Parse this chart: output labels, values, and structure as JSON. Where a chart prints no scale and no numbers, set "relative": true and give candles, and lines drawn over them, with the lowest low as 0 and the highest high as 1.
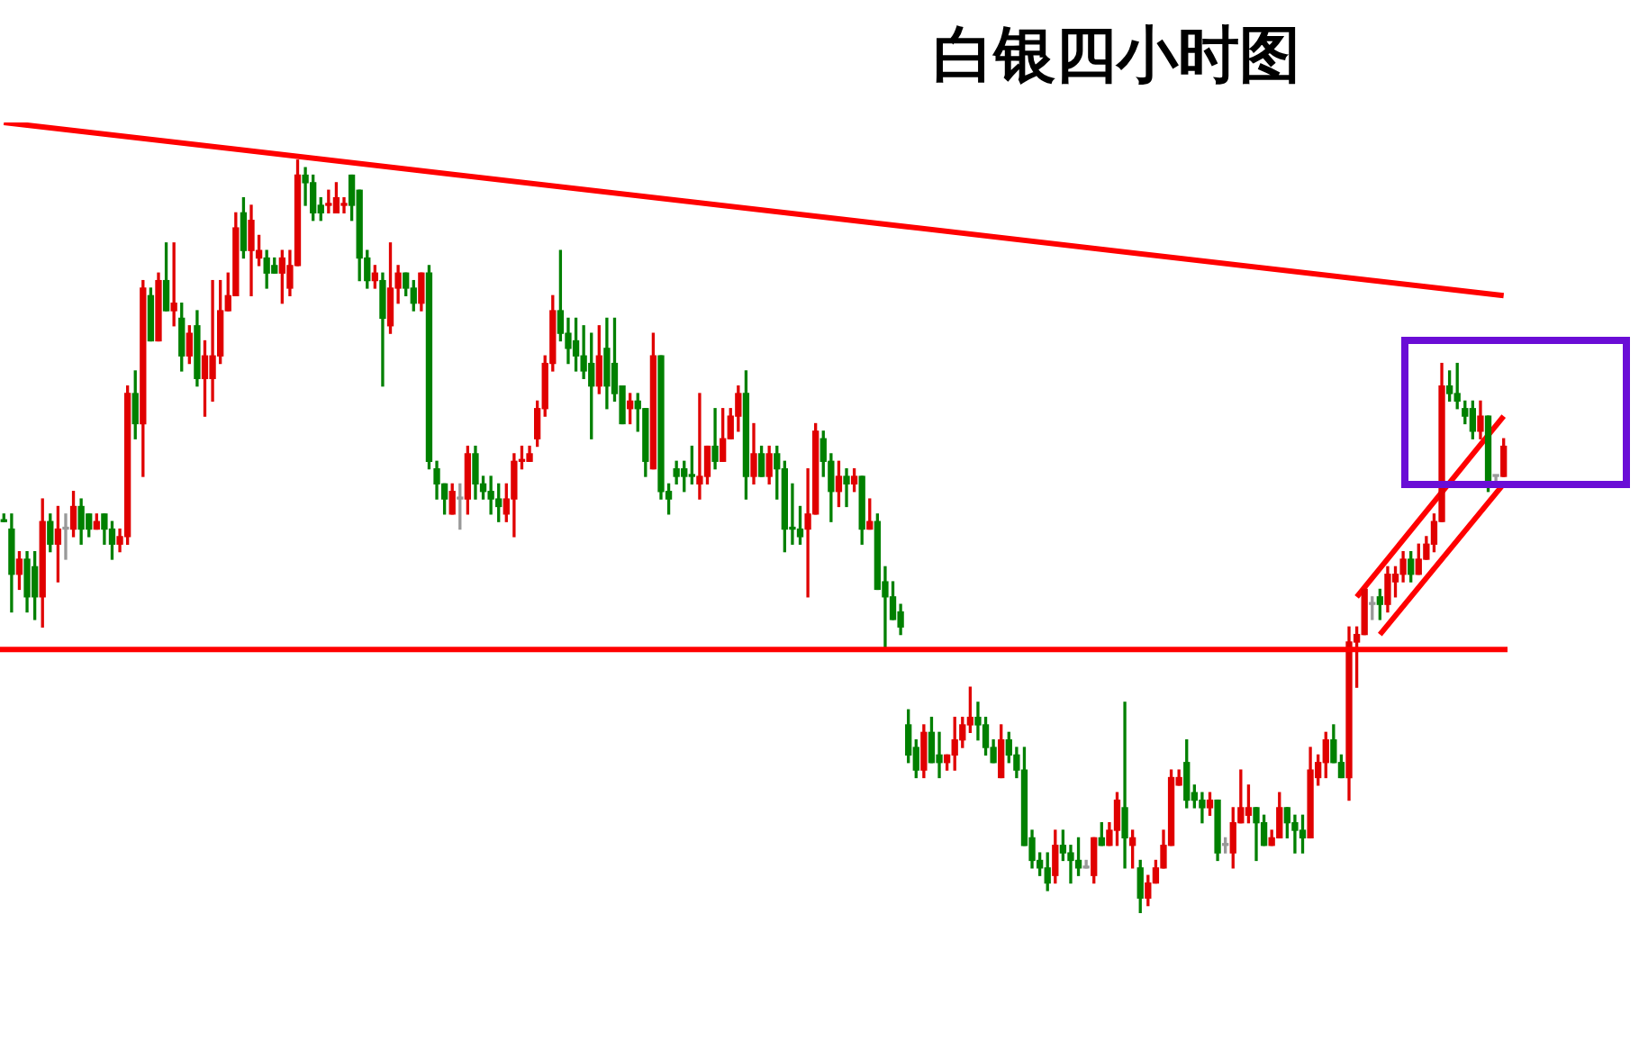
{
  "chart_data": {
    "type": "candlestick",
    "title": "白银四小时图",
    "relative": true,
    "legend": false,
    "tick_labels": false,
    "categories": [
      null,
      null,
      null,
      null,
      null,
      null,
      null,
      null,
      null,
      null,
      null,
      null,
      null,
      null,
      null,
      null,
      null,
      null,
      null,
      null,
      null,
      null,
      null,
      null,
      null,
      null,
      null,
      null,
      null,
      null,
      null,
      null,
      null,
      null,
      null,
      null,
      null,
      null,
      null,
      null,
      null,
      null,
      null,
      null,
      null,
      null,
      null,
      null,
      null,
      null,
      null,
      null,
      null,
      null,
      null,
      null,
      null,
      null,
      null,
      null,
      null,
      null,
      null,
      null,
      null,
      null,
      null,
      null,
      null,
      null,
      null,
      null,
      null,
      null,
      null,
      null,
      null,
      null,
      null,
      null,
      null,
      null,
      null,
      null,
      null,
      null,
      null,
      null,
      null,
      null,
      null,
      null,
      null,
      null,
      null,
      null,
      null,
      null,
      null,
      null,
      null,
      null,
      null,
      null,
      null,
      null,
      null,
      null,
      null,
      null,
      null,
      null,
      null,
      null,
      null,
      null,
      null,
      null,
      null,
      null,
      null,
      null,
      null,
      null,
      null,
      null,
      null,
      null,
      null,
      null,
      null,
      null,
      null,
      null,
      null,
      null,
      null,
      null,
      null,
      null,
      null,
      null,
      null,
      null,
      null,
      null,
      null,
      null,
      null,
      null,
      null,
      null,
      null,
      null,
      null,
      null,
      null,
      null,
      null,
      null,
      null,
      null,
      null,
      null,
      null,
      null,
      null,
      null,
      null,
      null,
      null,
      null,
      null,
      null,
      null,
      null,
      null,
      null,
      null,
      null,
      null,
      null,
      null,
      null,
      null,
      null,
      null,
      null,
      null,
      null,
      null,
      null,
      null,
      null,
      null
    ],
    "colors": [
      "#008000",
      "#008000",
      "#e00000",
      "#008000",
      "#008000",
      "#e00000",
      "#008000",
      "#e00000",
      "#999999",
      "#e00000",
      "#008000",
      "#008000",
      "#e00000",
      "#008000",
      "#008000",
      "#e00000",
      "#e00000",
      "#008000",
      "#e00000",
      "#008000",
      "#e00000",
      "#008000",
      "#e00000",
      "#008000",
      "#e00000",
      "#008000",
      "#e00000",
      "#e00000",
      "#e00000",
      "#e00000",
      "#e00000",
      "#008000",
      "#e00000",
      "#e00000",
      "#008000",
      "#008000",
      "#e00000",
      "#e00000",
      "#e00000",
      "#008000",
      "#008000",
      "#008000",
      "#e00000",
      "#e00000",
      "#e00000",
      "#008000",
      "#008000",
      "#008000",
      "#e00000",
      "#008000",
      "#e00000",
      "#e00000",
      "#008000",
      "#008000",
      "#e00000",
      "#008000",
      "#008000",
      "#008000",
      "#e00000",
      "#999999",
      "#e00000",
      "#008000",
      "#008000",
      "#008000",
      "#008000",
      "#e00000",
      "#e00000",
      "#e00000",
      "#e00000",
      "#e00000",
      "#e00000",
      "#e00000",
      "#008000",
      "#008000",
      "#008000",
      "#008000",
      "#008000",
      "#e00000",
      "#008000",
      "#008000",
      "#008000",
      "#e00000",
      "#008000",
      "#008000",
      "#e00000",
      "#008000",
      "#008000",
      "#008000",
      "#008000",
      "#008000",
      "#e00000",
      "#e00000",
      "#008000",
      "#e00000",
      "#e00000",
      "#e00000",
      "#008000",
      "#e00000",
      "#008000",
      "#e00000",
      "#008000",
      "#008000",
      "#008000",
      "#008000",
      "#e00000",
      "#e00000",
      "#008000",
      "#008000",
      "#e00000",
      "#008000",
      "#e00000",
      "#008000",
      "#e00000",
      "#008000",
      "#008000",
      "#008000",
      "#008000",
      "#008000",
      "#008000",
      "#e00000",
      "#008000",
      "#008000",
      "#e00000",
      "#e00000",
      "#e00000",
      "#e00000",
      "#008000",
      "#008000",
      "#008000",
      "#e00000",
      "#008000",
      "#008000",
      "#008000",
      "#008000",
      "#008000",
      "#008000",
      "#e00000",
      "#008000",
      "#008000",
      "#008000",
      "#999999",
      "#e00000",
      "#008000",
      "#e00000",
      "#e00000",
      "#008000",
      "#e00000",
      "#008000",
      "#e00000",
      "#e00000",
      "#e00000",
      "#e00000",
      "#e00000",
      "#008000",
      "#008000",
      "#008000",
      "#e00000",
      "#008000",
      "#999999",
      "#e00000",
      "#e00000",
      "#e00000",
      "#008000",
      "#008000",
      "#e00000",
      "#e00000",
      "#008000",
      "#008000",
      "#008000",
      "#e00000",
      "#e00000",
      "#e00000",
      "#008000",
      "#008000",
      "#e00000",
      "#e00000",
      "#e00000",
      "#999999",
      "#008000",
      "#e00000",
      "#e00000",
      "#e00000",
      "#008000",
      "#e00000",
      "#e00000",
      "#e00000",
      "#e00000",
      "#008000",
      "#008000",
      "#008000",
      "#008000",
      "#e00000",
      "#008000",
      "#999999",
      "#e00000"
    ],
    "ohlc": [
      [
        0.52,
        0.53,
        0.52,
        0.52
      ],
      [
        0.51,
        0.53,
        0.4,
        0.45
      ],
      [
        0.45,
        0.48,
        0.43,
        0.47
      ],
      [
        0.47,
        0.48,
        0.4,
        0.42
      ],
      [
        0.46,
        0.48,
        0.39,
        0.42
      ],
      [
        0.42,
        0.55,
        0.38,
        0.52
      ],
      [
        0.52,
        0.53,
        0.48,
        0.49
      ],
      [
        0.49,
        0.54,
        0.44,
        0.51
      ],
      [
        0.51,
        0.53,
        0.47,
        0.51
      ],
      [
        0.51,
        0.56,
        0.5,
        0.54
      ],
      [
        0.54,
        0.55,
        0.49,
        0.51
      ],
      [
        0.53,
        0.53,
        0.5,
        0.51
      ],
      [
        0.51,
        0.53,
        0.51,
        0.52
      ],
      [
        0.53,
        0.53,
        0.49,
        0.51
      ],
      [
        0.51,
        0.52,
        0.47,
        0.49
      ],
      [
        0.49,
        0.51,
        0.48,
        0.5
      ],
      [
        0.5,
        0.7,
        0.49,
        0.69
      ],
      [
        0.69,
        0.72,
        0.63,
        0.65
      ],
      [
        0.65,
        0.84,
        0.58,
        0.83
      ],
      [
        0.82,
        0.83,
        0.76,
        0.76
      ],
      [
        0.76,
        0.85,
        0.76,
        0.84
      ],
      [
        0.84,
        0.89,
        0.8,
        0.8
      ],
      [
        0.8,
        0.89,
        0.78,
        0.81
      ],
      [
        0.79,
        0.81,
        0.72,
        0.74
      ],
      [
        0.74,
        0.78,
        0.73,
        0.77
      ],
      [
        0.78,
        0.8,
        0.7,
        0.71
      ],
      [
        0.71,
        0.76,
        0.66,
        0.74
      ],
      [
        0.71,
        0.84,
        0.68,
        0.74
      ],
      [
        0.74,
        0.84,
        0.73,
        0.8
      ],
      [
        0.8,
        0.85,
        0.8,
        0.82
      ],
      [
        0.82,
        0.93,
        0.82,
        0.91
      ],
      [
        0.93,
        0.95,
        0.87,
        0.88
      ],
      [
        0.88,
        0.94,
        0.82,
        0.92
      ],
      [
        0.87,
        0.9,
        0.86,
        0.88
      ],
      [
        0.87,
        0.88,
        0.83,
        0.85
      ],
      [
        0.86,
        0.87,
        0.85,
        0.85
      ],
      [
        0.85,
        0.88,
        0.81,
        0.87
      ],
      [
        0.83,
        0.88,
        0.82,
        0.86
      ],
      [
        0.86,
        1,
        0.86,
        0.98
      ],
      [
        0.98,
        0.99,
        0.94,
        0.97
      ],
      [
        0.97,
        0.98,
        0.92,
        0.93
      ],
      [
        0.94,
        0.95,
        0.92,
        0.93
      ],
      [
        0.94,
        0.96,
        0.93,
        0.94
      ],
      [
        0.93,
        0.97,
        0.93,
        0.95
      ],
      [
        0.94,
        0.95,
        0.93,
        0.94
      ],
      [
        0.98,
        0.98,
        0.92,
        0.94
      ],
      [
        0.96,
        0.96,
        0.84,
        0.87
      ],
      [
        0.87,
        0.88,
        0.83,
        0.84
      ],
      [
        0.84,
        0.86,
        0.83,
        0.85
      ],
      [
        0.84,
        0.85,
        0.7,
        0.79
      ],
      [
        0.78,
        0.89,
        0.77,
        0.83
      ],
      [
        0.83,
        0.86,
        0.81,
        0.85
      ],
      [
        0.85,
        0.85,
        0.82,
        0.83
      ],
      [
        0.83,
        0.84,
        0.8,
        0.81
      ],
      [
        0.81,
        0.85,
        0.8,
        0.85
      ],
      [
        0.85,
        0.86,
        0.59,
        0.6
      ],
      [
        0.59,
        0.6,
        0.55,
        0.57
      ],
      [
        0.57,
        0.57,
        0.53,
        0.55
      ],
      [
        0.53,
        0.57,
        0.53,
        0.56
      ],
      [
        0.55,
        0.57,
        0.51,
        0.55
      ],
      [
        0.55,
        0.62,
        0.53,
        0.61
      ],
      [
        0.61,
        0.62,
        0.55,
        0.57
      ],
      [
        0.57,
        0.58,
        0.55,
        0.56
      ],
      [
        0.56,
        0.58,
        0.53,
        0.55
      ],
      [
        0.55,
        0.57,
        0.52,
        0.54
      ],
      [
        0.53,
        0.57,
        0.52,
        0.55
      ],
      [
        0.55,
        0.61,
        0.5,
        0.6
      ],
      [
        0.6,
        0.62,
        0.59,
        0.6
      ],
      [
        0.6,
        0.62,
        0.6,
        0.61
      ],
      [
        0.63,
        0.68,
        0.62,
        0.67
      ],
      [
        0.67,
        0.74,
        0.66,
        0.73
      ],
      [
        0.73,
        0.82,
        0.72,
        0.8
      ],
      [
        0.8,
        0.88,
        0.76,
        0.77
      ],
      [
        0.77,
        0.79,
        0.73,
        0.75
      ],
      [
        0.76,
        0.79,
        0.72,
        0.74
      ],
      [
        0.74,
        0.78,
        0.71,
        0.72
      ],
      [
        0.73,
        0.77,
        0.63,
        0.7
      ],
      [
        0.7,
        0.78,
        0.69,
        0.74
      ],
      [
        0.75,
        0.79,
        0.67,
        0.7
      ],
      [
        0.73,
        0.79,
        0.68,
        0.69
      ],
      [
        0.7,
        0.7,
        0.65,
        0.65
      ],
      [
        0.67,
        0.69,
        0.65,
        0.68
      ],
      [
        0.68,
        0.69,
        0.64,
        0.67
      ],
      [
        0.67,
        0.67,
        0.58,
        0.6
      ],
      [
        0.59,
        0.77,
        0.59,
        0.74
      ],
      [
        0.74,
        0.74,
        0.55,
        0.56
      ],
      [
        0.56,
        0.57,
        0.53,
        0.55
      ],
      [
        0.59,
        0.6,
        0.57,
        0.58
      ],
      [
        0.59,
        0.6,
        0.56,
        0.58
      ],
      [
        0.58,
        0.62,
        0.57,
        0.58
      ],
      [
        0.57,
        0.69,
        0.55,
        0.58
      ],
      [
        0.58,
        0.62,
        0.57,
        0.62
      ],
      [
        0.62,
        0.67,
        0.59,
        0.6
      ],
      [
        0.6,
        0.67,
        0.6,
        0.63
      ],
      [
        0.63,
        0.67,
        0.63,
        0.66
      ],
      [
        0.66,
        0.7,
        0.64,
        0.69
      ],
      [
        0.69,
        0.72,
        0.55,
        0.58
      ],
      [
        0.58,
        0.65,
        0.57,
        0.61
      ],
      [
        0.61,
        0.62,
        0.58,
        0.58
      ],
      [
        0.58,
        0.62,
        0.57,
        0.61
      ],
      [
        0.61,
        0.62,
        0.55,
        0.59
      ],
      [
        0.59,
        0.6,
        0.48,
        0.51
      ],
      [
        0.51,
        0.57,
        0.49,
        0.51
      ],
      [
        0.51,
        0.54,
        0.49,
        0.5
      ],
      [
        0.51,
        0.59,
        0.42,
        0.53
      ],
      [
        0.53,
        0.65,
        0.53,
        0.64
      ],
      [
        0.63,
        0.64,
        0.58,
        0.6
      ],
      [
        0.6,
        0.61,
        0.52,
        0.56
      ],
      [
        0.56,
        0.6,
        0.54,
        0.58
      ],
      [
        0.58,
        0.59,
        0.54,
        0.57
      ],
      [
        0.57,
        0.59,
        0.56,
        0.58
      ],
      [
        0.58,
        0.58,
        0.49,
        0.51
      ],
      [
        0.51,
        0.55,
        0.51,
        0.52
      ],
      [
        0.52,
        0.53,
        0.43,
        0.43
      ],
      [
        0.44,
        0.46,
        0.35,
        0.42
      ],
      [
        0.42,
        0.44,
        0.39,
        0.39
      ],
      [
        0.4,
        0.41,
        0.37,
        0.38
      ],
      [
        0.25,
        0.27,
        0.2,
        0.21
      ],
      [
        0.22,
        0.23,
        0.18,
        0.19
      ],
      [
        0.19,
        0.25,
        0.18,
        0.24
      ],
      [
        0.24,
        0.26,
        0.2,
        0.2
      ],
      [
        0.21,
        0.24,
        0.18,
        0.2
      ],
      [
        0.2,
        0.21,
        0.19,
        0.21
      ],
      [
        0.21,
        0.26,
        0.19,
        0.23
      ],
      [
        0.23,
        0.26,
        0.22,
        0.25
      ],
      [
        0.25,
        0.3,
        0.24,
        0.26
      ],
      [
        0.26,
        0.28,
        0.23,
        0.25
      ],
      [
        0.25,
        0.26,
        0.21,
        0.22
      ],
      [
        0.22,
        0.23,
        0.2,
        0.2
      ],
      [
        0.18,
        0.25,
        0.18,
        0.23
      ],
      [
        0.23,
        0.24,
        0.2,
        0.21
      ],
      [
        0.21,
        0.22,
        0.18,
        0.19
      ],
      [
        0.19,
        0.22,
        0.09,
        0.09
      ],
      [
        0.1,
        0.11,
        0.06,
        0.07
      ],
      [
        0.07,
        0.08,
        0.05,
        0.06
      ],
      [
        0.06,
        0.08,
        0.03,
        0.04
      ],
      [
        0.05,
        0.11,
        0.04,
        0.09
      ],
      [
        0.09,
        0.11,
        0.07,
        0.08
      ],
      [
        0.08,
        0.09,
        0.04,
        0.07
      ],
      [
        0.07,
        0.1,
        0.05,
        0.06
      ],
      [
        0.06,
        0.07,
        0.06,
        0.06
      ],
      [
        0.05,
        0.1,
        0.04,
        0.1
      ],
      [
        0.1,
        0.12,
        0.09,
        0.09
      ],
      [
        0.09,
        0.12,
        0.09,
        0.11
      ],
      [
        0.11,
        0.16,
        0.09,
        0.15
      ],
      [
        0.14,
        0.28,
        0.06,
        0.1
      ],
      [
        0.09,
        0.11,
        0.06,
        0.1
      ],
      [
        0.06,
        0.07,
        0,
        0.02
      ],
      [
        0.02,
        0.05,
        0.01,
        0.04
      ],
      [
        0.04,
        0.07,
        0.04,
        0.06
      ],
      [
        0.06,
        0.11,
        0.06,
        0.09
      ],
      [
        0.09,
        0.19,
        0.09,
        0.18
      ],
      [
        0.17,
        0.19,
        0.17,
        0.18
      ],
      [
        0.2,
        0.23,
        0.14,
        0.15
      ],
      [
        0.16,
        0.17,
        0.14,
        0.15
      ],
      [
        0.15,
        0.16,
        0.12,
        0.14
      ],
      [
        0.14,
        0.16,
        0.13,
        0.15
      ],
      [
        0.15,
        0.15,
        0.07,
        0.08
      ],
      [
        0.09,
        0.1,
        0.08,
        0.09
      ],
      [
        0.08,
        0.14,
        0.06,
        0.12
      ],
      [
        0.12,
        0.19,
        0.12,
        0.14
      ],
      [
        0.13,
        0.17,
        0.12,
        0.14
      ],
      [
        0.14,
        0.14,
        0.07,
        0.12
      ],
      [
        0.12,
        0.13,
        0.09,
        0.09
      ],
      [
        0.09,
        0.11,
        0.09,
        0.1
      ],
      [
        0.1,
        0.16,
        0.1,
        0.14
      ],
      [
        0.14,
        0.14,
        0.1,
        0.12
      ],
      [
        0.12,
        0.13,
        0.08,
        0.11
      ],
      [
        0.11,
        0.13,
        0.08,
        0.1
      ],
      [
        0.1,
        0.22,
        0.1,
        0.19
      ],
      [
        0.18,
        0.21,
        0.17,
        0.2
      ],
      [
        0.2,
        0.24,
        0.18,
        0.23
      ],
      [
        0.23,
        0.25,
        0.2,
        0.2
      ],
      [
        0.2,
        0.21,
        0.18,
        0.18
      ],
      [
        0.18,
        0.38,
        0.15,
        0.36
      ],
      [
        0.36,
        0.38,
        0.3,
        0.37
      ],
      [
        0.37,
        0.43,
        0.37,
        0.43
      ],
      [
        0.41,
        0.42,
        0.39,
        0.41
      ],
      [
        0.42,
        0.43,
        0.39,
        0.41
      ],
      [
        0.41,
        0.46,
        0.4,
        0.45
      ],
      [
        0.44,
        0.46,
        0.42,
        0.45
      ],
      [
        0.45,
        0.48,
        0.44,
        0.47
      ],
      [
        0.47,
        0.48,
        0.44,
        0.45
      ],
      [
        0.45,
        0.49,
        0.45,
        0.47
      ],
      [
        0.47,
        0.5,
        0.47,
        0.49
      ],
      [
        0.49,
        0.53,
        0.48,
        0.52
      ],
      [
        0.52,
        0.73,
        0.52,
        0.7
      ],
      [
        0.7,
        0.72,
        0.68,
        0.69
      ],
      [
        0.69,
        0.73,
        0.67,
        0.68
      ],
      [
        0.67,
        0.68,
        0.65,
        0.66
      ],
      [
        0.67,
        0.68,
        0.63,
        0.64
      ],
      [
        0.64,
        0.68,
        0.63,
        0.66
      ],
      [
        0.66,
        0.66,
        0.56,
        0.57
      ],
      [
        0.58,
        0.58,
        0.57,
        0.58
      ],
      [
        0.58,
        0.63,
        0.58,
        0.62
      ]
    ],
    "series": [
      {
        "type": "line",
        "color": "#ff0000",
        "values": [
          1.05,
          null,
          null,
          null,
          null,
          null,
          null,
          null,
          null,
          null,
          null,
          null,
          null,
          null,
          null,
          null,
          null,
          null,
          null,
          null,
          null,
          null,
          null,
          null,
          null,
          null,
          null,
          null,
          null,
          null,
          null,
          null,
          null,
          null,
          null,
          null,
          null,
          null,
          null,
          null,
          null,
          null,
          null,
          null,
          null,
          null,
          null,
          null,
          null,
          null,
          null,
          null,
          null,
          null,
          null,
          null,
          null,
          null,
          null,
          null,
          null,
          null,
          null,
          null,
          null,
          null,
          null,
          null,
          null,
          null,
          null,
          null,
          null,
          null,
          null,
          null,
          null,
          null,
          null,
          null,
          null,
          null,
          null,
          null,
          null,
          null,
          null,
          null,
          null,
          null,
          null,
          null,
          null,
          null,
          null,
          null,
          null,
          null,
          null,
          null,
          null,
          null,
          null,
          null,
          null,
          null,
          null,
          null,
          null,
          null,
          null,
          null,
          null,
          null,
          null,
          null,
          null,
          null,
          null,
          null,
          null,
          null,
          null,
          null,
          null,
          null,
          null,
          null,
          null,
          null,
          null,
          null,
          null,
          null,
          null,
          null,
          null,
          null,
          null,
          null,
          null,
          null,
          null,
          null,
          null,
          null,
          null,
          null,
          null,
          null,
          null,
          null,
          null,
          null,
          null,
          null,
          null,
          null,
          null,
          null,
          null,
          null,
          null,
          null,
          null,
          null,
          null,
          null,
          null,
          null,
          null,
          null,
          null,
          null,
          null,
          null,
          null,
          null,
          null,
          null,
          null,
          null,
          null,
          null,
          null,
          null,
          null,
          null,
          null,
          null,
          null,
          null,
          null,
          null,
          0.82
        ]
      },
      {
        "type": "line",
        "color": "#ff0000",
        "values": [
          null,
          null,
          null,
          null,
          null,
          null,
          null,
          null,
          null,
          null,
          null,
          null,
          null,
          null,
          null,
          null,
          null,
          null,
          null,
          null,
          null,
          null,
          null,
          null,
          null,
          null,
          null,
          null,
          null,
          null,
          null,
          null,
          null,
          null,
          null,
          null,
          null,
          null,
          null,
          null,
          null,
          null,
          null,
          null,
          null,
          null,
          null,
          null,
          null,
          null,
          null,
          null,
          null,
          null,
          null,
          null,
          null,
          null,
          null,
          null,
          null,
          null,
          null,
          null,
          null,
          null,
          null,
          null,
          null,
          null,
          null,
          null,
          null,
          null,
          null,
          null,
          null,
          null,
          null,
          null,
          null,
          null,
          null,
          null,
          null,
          null,
          null,
          null,
          null,
          null,
          null,
          null,
          null,
          null,
          null,
          null,
          null,
          null,
          null,
          null,
          null,
          null,
          null,
          null,
          null,
          null,
          null,
          null,
          null,
          null,
          null,
          null,
          null,
          null,
          null,
          null,
          null,
          null,
          null,
          null,
          null,
          null,
          null,
          null,
          null,
          null,
          null,
          null,
          null,
          null,
          null,
          null,
          null,
          null,
          null,
          null,
          null,
          null,
          null,
          null,
          null,
          null,
          null,
          null,
          null,
          null,
          null,
          null,
          null,
          null,
          null,
          null,
          null,
          null,
          null,
          null,
          null,
          null,
          null,
          null,
          null,
          null,
          null,
          null,
          null,
          null,
          null,
          null,
          null,
          null,
          null,
          null,
          null,
          null,
          null,
          0.42,
          null,
          null,
          null,
          null,
          null,
          null,
          null,
          null,
          null,
          null,
          null,
          null,
          null,
          null,
          null,
          null,
          null,
          null,
          0.66
        ]
      },
      {
        "type": "line",
        "color": "#ff0000",
        "values": [
          null,
          null,
          null,
          null,
          null,
          null,
          null,
          null,
          null,
          null,
          null,
          null,
          null,
          null,
          null,
          null,
          null,
          null,
          null,
          null,
          null,
          null,
          null,
          null,
          null,
          null,
          null,
          null,
          null,
          null,
          null,
          null,
          null,
          null,
          null,
          null,
          null,
          null,
          null,
          null,
          null,
          null,
          null,
          null,
          null,
          null,
          null,
          null,
          null,
          null,
          null,
          null,
          null,
          null,
          null,
          null,
          null,
          null,
          null,
          null,
          null,
          null,
          null,
          null,
          null,
          null,
          null,
          null,
          null,
          null,
          null,
          null,
          null,
          null,
          null,
          null,
          null,
          null,
          null,
          null,
          null,
          null,
          null,
          null,
          null,
          null,
          null,
          null,
          null,
          null,
          null,
          null,
          null,
          null,
          null,
          null,
          null,
          null,
          null,
          null,
          null,
          null,
          null,
          null,
          null,
          null,
          null,
          null,
          null,
          null,
          null,
          null,
          null,
          null,
          null,
          null,
          null,
          null,
          null,
          null,
          null,
          null,
          null,
          null,
          null,
          null,
          null,
          null,
          null,
          null,
          null,
          null,
          null,
          null,
          null,
          null,
          null,
          null,
          null,
          null,
          null,
          null,
          null,
          null,
          null,
          null,
          null,
          null,
          null,
          null,
          null,
          null,
          null,
          null,
          null,
          null,
          null,
          null,
          null,
          null,
          null,
          null,
          null,
          null,
          null,
          null,
          null,
          null,
          null,
          null,
          null,
          null,
          null,
          null,
          null,
          null,
          null,
          null,
          0.37,
          null,
          null,
          null,
          null,
          null,
          null,
          null,
          null,
          null,
          null,
          null,
          null,
          null,
          null,
          null,
          0.57
        ]
      }
    ],
    "marker": "none",
    "ref_lines": [
      {
        "axis": "y",
        "value": 0.35,
        "color": "#ff0000"
      }
    ]
  }
}
